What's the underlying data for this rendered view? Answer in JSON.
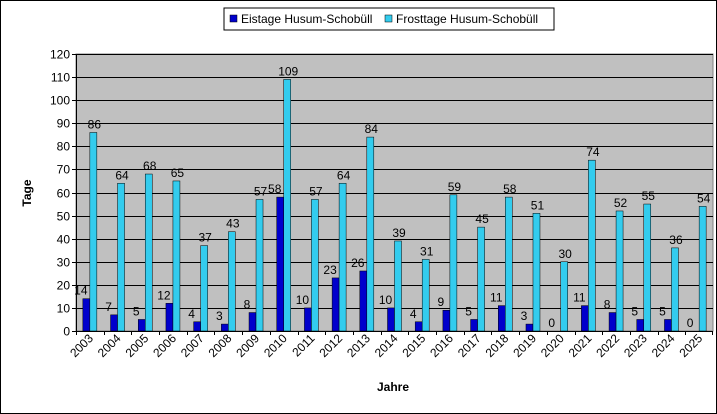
{
  "chart_data": {
    "type": "bar",
    "title": "",
    "xlabel": "Jahre",
    "ylabel": "Tage",
    "ylim": [
      0,
      120
    ],
    "ytick_step": 10,
    "grid": true,
    "legend_position": "top",
    "plot_background": "#c0c0c0",
    "categories": [
      "2003",
      "2004",
      "2005",
      "2006",
      "2007",
      "2008",
      "2009",
      "2010",
      "2011",
      "2012",
      "2013",
      "2014",
      "2015",
      "2016",
      "2017",
      "2018",
      "2019",
      "2020",
      "2021",
      "2022",
      "2023",
      "2024",
      "2025"
    ],
    "series": [
      {
        "name": "Eistage Husum-Schobüll",
        "color": "#0000cc",
        "values": [
          14,
          7,
          5,
          12,
          4,
          3,
          8,
          58,
          10,
          23,
          26,
          10,
          4,
          9,
          5,
          11,
          3,
          0,
          11,
          8,
          5,
          5,
          0
        ]
      },
      {
        "name": "Frosttage Husum-Schobüll",
        "color": "#33ccee",
        "values": [
          86,
          64,
          68,
          65,
          37,
          43,
          57,
          109,
          57,
          64,
          84,
          39,
          31,
          59,
          45,
          58,
          51,
          30,
          74,
          52,
          55,
          36,
          54
        ]
      }
    ]
  }
}
